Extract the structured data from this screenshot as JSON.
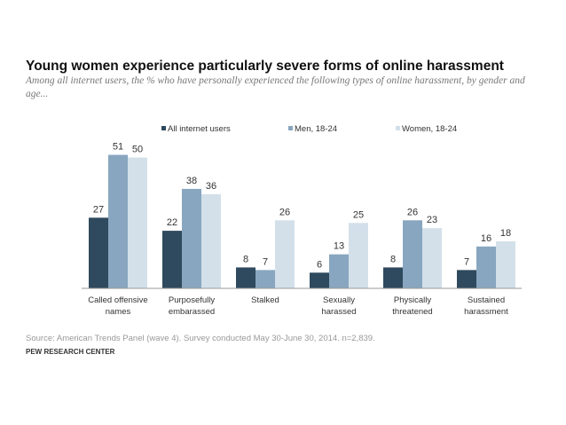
{
  "chart_data": {
    "type": "bar",
    "title": "Young women experience particularly severe forms of online harassment",
    "subtitle": "Among all internet users, the % who have personally experienced the following types of online harassment, by gender and age...",
    "categories": [
      [
        "Called offensive",
        "names"
      ],
      [
        "Purposefully",
        "embarassed"
      ],
      [
        "Stalked"
      ],
      [
        "Sexually",
        "harassed"
      ],
      [
        "Physically",
        "threatened"
      ],
      [
        "Sustained",
        "harassment"
      ]
    ],
    "series": [
      {
        "name": "All internet users",
        "color": "#2f4a5e",
        "values": [
          27,
          22,
          8,
          6,
          8,
          7
        ]
      },
      {
        "name": "Men, 18-24",
        "color": "#88a6bf",
        "values": [
          51,
          38,
          7,
          13,
          26,
          16
        ]
      },
      {
        "name": "Women, 18-24",
        "color": "#d3e0ea",
        "values": [
          50,
          36,
          26,
          25,
          23,
          18
        ]
      }
    ],
    "ylim": [
      0,
      55
    ],
    "grid": false,
    "legend": "top"
  },
  "source": "Source: American Trends Panel (wave 4). Survey conducted May 30-June 30, 2014. n=2,839.",
  "brand": "PEW RESEARCH CENTER"
}
